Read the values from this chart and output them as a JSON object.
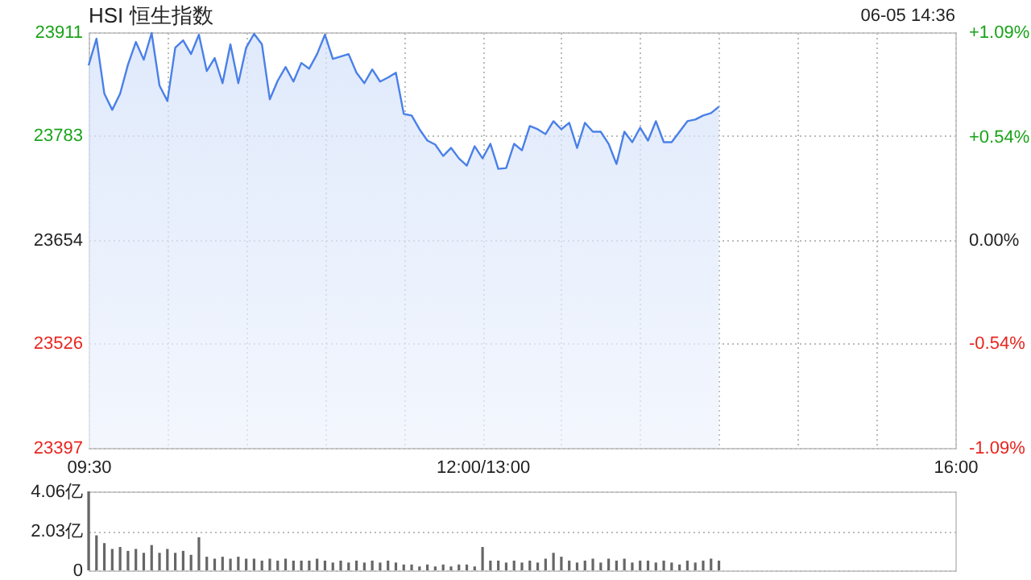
{
  "chart_data": [
    {
      "type": "area",
      "title": "HSI 恒生指数",
      "annotations": [
        "06-05 14:36"
      ],
      "categories": [
        "09:30",
        null,
        null,
        null,
        null,
        null,
        null,
        null,
        null,
        null,
        null,
        null,
        null,
        null,
        null,
        null,
        null,
        null,
        null,
        null,
        null,
        null,
        null,
        null,
        null,
        null,
        null,
        null,
        null,
        null,
        null,
        null,
        null,
        null,
        null,
        null,
        null,
        null,
        null,
        null,
        null,
        null,
        null,
        null,
        null,
        null,
        null,
        null,
        null,
        null,
        "12:00/13:00",
        null,
        null,
        null,
        null,
        null,
        null,
        null,
        null,
        null,
        null,
        null,
        null,
        null,
        null,
        null,
        null,
        null,
        null,
        null,
        null,
        null,
        null,
        null,
        null,
        null,
        null,
        null,
        null,
        null,
        null,
        null,
        null,
        null,
        null,
        null,
        null,
        null,
        null,
        null,
        null,
        null,
        null,
        null,
        null,
        null,
        null,
        null,
        null,
        null,
        null,
        null,
        null,
        null,
        null,
        null,
        null,
        null,
        null,
        null,
        "16:00"
      ],
      "ylim": [
        23397,
        23911
      ],
      "yticks": [
        23397,
        23526,
        23654,
        23783,
        23911
      ],
      "y2lim": [
        -1.09,
        1.09
      ],
      "y2ticks": [
        {
          "value": -1.09,
          "label": "-1.09%"
        },
        {
          "value": -0.54,
          "label": "-0.54%"
        },
        {
          "value": 0,
          "label": "0.00%"
        },
        {
          "value": 0.54,
          "label": "+0.54%"
        },
        {
          "value": 1.09,
          "label": "+1.09%"
        }
      ],
      "grid": true,
      "series": [
        {
          "color": "#4a80e8",
          "values": [
            23870,
            23903,
            23835,
            23815,
            23835,
            23871,
            23899,
            23877,
            23910,
            23845,
            23826,
            23892,
            23901,
            23884,
            23908,
            23863,
            23879,
            23848,
            23896,
            23848,
            23892,
            23909,
            23896,
            23828,
            23851,
            23868,
            23850,
            23873,
            23866,
            23884,
            23908,
            23878,
            23881,
            23884,
            23861,
            23848,
            23865,
            23850,
            23855,
            23861,
            23810,
            23808,
            23791,
            23777,
            23772,
            23758,
            23768,
            23755,
            23746,
            23770,
            23755,
            23773,
            23742,
            23743,
            23773,
            23765,
            23795,
            23791,
            23785,
            23801,
            23791,
            23799,
            23768,
            23799,
            23788,
            23788,
            23773,
            23748,
            23788,
            23775,
            23793,
            23777,
            23801,
            23775,
            23775,
            23788,
            23801,
            23803,
            23808,
            23811,
            23819,
            null,
            null,
            null,
            null,
            null,
            null,
            null,
            null,
            null,
            null,
            null,
            null,
            null,
            null,
            null,
            null,
            null,
            null,
            null,
            null,
            null,
            null,
            null,
            null,
            null,
            null,
            null,
            null,
            null,
            null
          ]
        }
      ]
    },
    {
      "type": "bar",
      "tick_labels": "y",
      "grid": "y",
      "categories": [
        null,
        null,
        null,
        null,
        null,
        null,
        null,
        null,
        null,
        null,
        null,
        null,
        null,
        null,
        null,
        null,
        null,
        null,
        null,
        null,
        null,
        null,
        null,
        null,
        null,
        null,
        null,
        null,
        null,
        null,
        null,
        null,
        null,
        null,
        null,
        null,
        null,
        null,
        null,
        null,
        null,
        null,
        null,
        null,
        null,
        null,
        null,
        null,
        null,
        null,
        null,
        null,
        null,
        null,
        null,
        null,
        null,
        null,
        null,
        null,
        null,
        null,
        null,
        null,
        null,
        null,
        null,
        null,
        null,
        null,
        null,
        null,
        null,
        null,
        null,
        null,
        null,
        null,
        null,
        null,
        null,
        null,
        null,
        null,
        null,
        null,
        null,
        null,
        null,
        null,
        null,
        null,
        null,
        null,
        null,
        null,
        null,
        null,
        null,
        null,
        null,
        null,
        null,
        null,
        null,
        null,
        null,
        null,
        null,
        null,
        null
      ],
      "ylim": [
        0,
        4.06
      ],
      "yticks": [
        {
          "value": 0,
          "label": "0"
        },
        {
          "value": 2.03,
          "label": "2.03亿"
        },
        {
          "value": 4.06,
          "label": "4.06亿"
        }
      ],
      "series": [
        {
          "color": "#666666",
          "values": [
            4.06,
            1.8,
            1.4,
            1.1,
            1.2,
            1.0,
            1.1,
            0.9,
            1.3,
            0.9,
            1.1,
            0.9,
            1.0,
            0.8,
            1.7,
            0.7,
            0.6,
            0.7,
            0.6,
            0.7,
            0.6,
            0.6,
            0.5,
            0.6,
            0.5,
            0.6,
            0.5,
            0.5,
            0.5,
            0.6,
            0.5,
            0.4,
            0.5,
            0.4,
            0.5,
            0.4,
            0.5,
            0.4,
            0.5,
            0.4,
            0.3,
            0.3,
            0.2,
            0.3,
            0.2,
            0.3,
            0.2,
            0.3,
            0.3,
            0.2,
            1.2,
            0.5,
            0.5,
            0.4,
            0.5,
            0.4,
            0.5,
            0.4,
            0.6,
            0.9,
            0.7,
            0.5,
            0.4,
            0.5,
            0.6,
            0.4,
            0.6,
            0.5,
            0.6,
            0.4,
            0.5,
            0.5,
            0.4,
            0.5,
            0.4,
            0.3,
            0.5,
            0.4,
            0.5,
            0.6,
            0.5,
            null,
            null,
            null,
            null,
            null,
            null,
            null,
            null,
            null,
            null,
            null,
            null,
            null,
            null,
            null,
            null,
            null,
            null,
            null,
            null,
            null,
            null,
            null,
            null,
            null,
            null,
            null,
            null,
            null,
            null
          ]
        }
      ]
    }
  ]
}
